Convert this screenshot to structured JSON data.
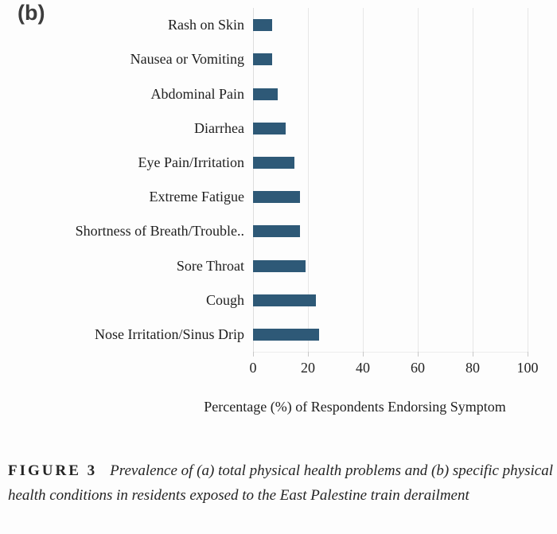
{
  "panel_label": "(b)",
  "chart_data": {
    "type": "bar",
    "orientation": "horizontal",
    "categories": [
      "Rash on Skin",
      "Nausea or Vomiting",
      "Abdominal Pain",
      "Diarrhea",
      "Eye Pain/Irritation",
      "Extreme Fatigue",
      "Shortness of Breath/Trouble..",
      "Sore Throat",
      "Cough",
      "Nose Irritation/Sinus Drip"
    ],
    "values": [
      7,
      7,
      9,
      12,
      15,
      17,
      17,
      19,
      23,
      24
    ],
    "xlabel": "Percentage (%) of Respondents Endorsing Symptom",
    "xticks": [
      "0",
      "20",
      "40",
      "60",
      "80",
      "100"
    ],
    "xlim": [
      0,
      100
    ],
    "grid": true,
    "legend_position": "none",
    "bar_color": "#2e5977",
    "gridline_color": "#e7e7e7"
  },
  "caption": {
    "figure_label": "FIGURE 3",
    "text": "Prevalence of (a) total physical health problems and (b) specific physical health conditions in residents exposed to the East Palestine train derailment"
  }
}
